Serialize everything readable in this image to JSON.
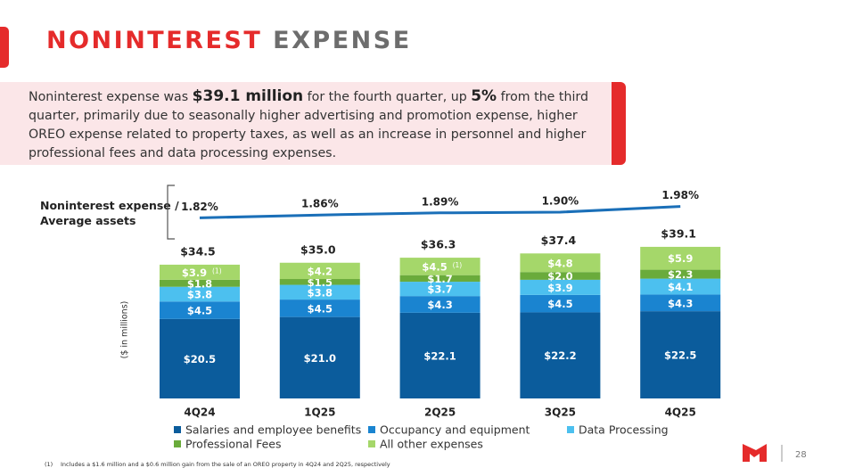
{
  "header": {
    "title_parts": [
      "NONINTEREST",
      "EXPENSE"
    ]
  },
  "summary": [
    "Noninterest expense was ",
    "$39.1 million",
    " for the fourth quarter, up ",
    "5%",
    " from the third quarter, primarily due to seasonally higher advertising and promotion expense, higher OREO expense related to property taxes, as well as an increase in personnel and higher professional fees and data processing expenses."
  ],
  "chart_data": [
    {
      "type": "bar",
      "stacked": true,
      "unit_label": "($ in millions)",
      "categories": [
        "4Q24",
        "1Q25",
        "2Q25",
        "3Q25",
        "4Q25"
      ],
      "series": [
        {
          "name": "Salaries and employee benefits",
          "color": "#0b5c9c",
          "values": [
            20.5,
            21.0,
            22.1,
            22.2,
            22.5
          ],
          "value_labels": [
            "$20.5",
            "$21.0",
            "$22.1",
            "$22.2",
            "$22.5"
          ]
        },
        {
          "name": "Occupancy and equipment",
          "color": "#1a84d0",
          "values": [
            4.5,
            4.5,
            4.3,
            4.5,
            4.3
          ],
          "value_labels": [
            "$4.5",
            "$4.5",
            "$4.3",
            "$4.5",
            "$4.3"
          ]
        },
        {
          "name": "Data Processing",
          "color": "#4cc0ef",
          "values": [
            3.8,
            3.8,
            3.7,
            3.9,
            4.1
          ],
          "value_labels": [
            "$3.8",
            "$3.8",
            "$3.7",
            "$3.9",
            "$4.1"
          ]
        },
        {
          "name": "Professional Fees",
          "color": "#6aab3b",
          "values": [
            1.8,
            1.5,
            1.7,
            2.0,
            2.3
          ],
          "value_labels": [
            "$1.8",
            "$1.5",
            "$1.7",
            "$2.0",
            "$2.3"
          ]
        },
        {
          "name": "All other expenses",
          "color": "#a5d76a",
          "values": [
            3.9,
            4.2,
            4.5,
            4.8,
            5.9
          ],
          "value_labels": [
            "$3.9",
            "$4.2",
            "$4.5",
            "$4.8",
            "$5.9"
          ],
          "notes": [
            "(1)",
            null,
            "(1)",
            null,
            null
          ]
        }
      ],
      "totals": [
        34.5,
        35.0,
        36.3,
        37.4,
        39.1
      ],
      "total_labels": [
        "$34.5",
        "$35.0",
        "$36.3",
        "$37.4",
        "$39.1"
      ]
    },
    {
      "type": "line",
      "label": "Noninterest expense / Average assets",
      "color": "#1a6fb8",
      "categories": [
        "4Q24",
        "1Q25",
        "2Q25",
        "3Q25",
        "4Q25"
      ],
      "values": [
        1.82,
        1.86,
        1.89,
        1.9,
        1.98
      ],
      "value_labels": [
        "1.82%",
        "1.86%",
        "1.89%",
        "1.90%",
        "1.98%"
      ]
    }
  ],
  "footnote": [
    "(1)",
    "Includes a $1.6 million and a $0.6 million gain from the sale of an OREO property in 4Q24 and 2Q25, respectively"
  ],
  "page_number": "28"
}
